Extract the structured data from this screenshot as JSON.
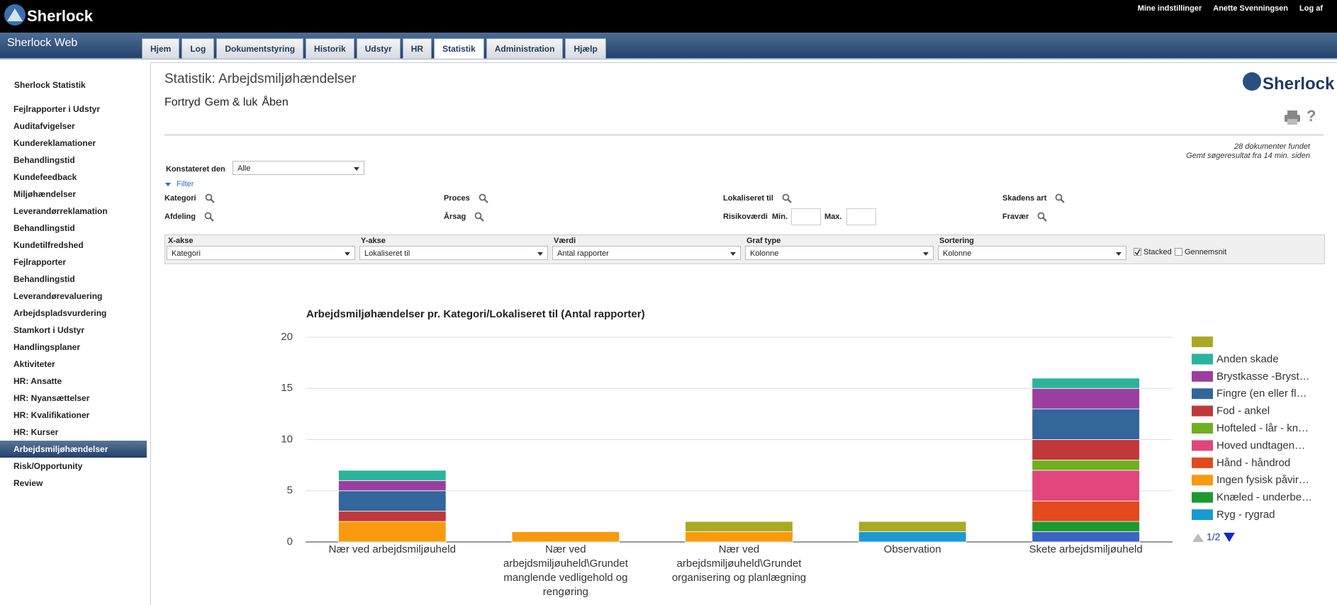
{
  "header": {
    "logo": "Sherlock",
    "app": "Sherlock Web",
    "links": [
      "Mine indstillinger",
      "Anette Svenningsen",
      "Log af"
    ],
    "tabs": [
      "Hjem",
      "Log",
      "Dokumentstyring",
      "Historik",
      "Udstyr",
      "HR",
      "Statistik",
      "Administration",
      "Hjælp"
    ]
  },
  "sidebar": {
    "title": "Sherlock Statistik",
    "items": [
      "Fejlrapporter i Udstyr",
      "Auditafvigelser",
      "Kundereklamationer",
      "Behandlingstid",
      "Kundefeedback",
      "Miljøhændelser",
      "Leverandørreklamation",
      "Behandlingstid",
      "Kundetilfredshed",
      "Fejlrapporter",
      "Behandlingstid",
      "Leverandørevaluering",
      "Arbejdspladsvurdering",
      "Stamkort i Udstyr",
      "Handlingsplaner",
      "Aktiviteter",
      "HR: Ansatte",
      "HR: Nyansættelser",
      "HR: Kvalifikationer",
      "HR: Kurser",
      "Arbejdsmiljøhændelser",
      "Risk/Opportunity",
      "Review"
    ]
  },
  "main": {
    "title": "Statistik: Arbejdsmiljøhændelser",
    "buttons": [
      "Fortryd",
      "Gem & luk",
      "Åben"
    ],
    "logo": "Sherlock",
    "help": "?",
    "result_count": "28 dokumenter fundet",
    "saved": "Gemt søgeresultat fra 14 min. siden",
    "konstateret": {
      "label": "Konstateret den",
      "value": "Alle"
    },
    "filter": "Filter",
    "filters": [
      [
        "Kategori",
        "Proces",
        "Lokaliseret til",
        "Skadens art"
      ],
      [
        "Afdeling",
        "Årsag",
        "Risikoværdi",
        "Fravær"
      ]
    ],
    "risiko_min": "Min.",
    "risiko_max": "Max.",
    "axes": [
      {
        "label": "X-akse",
        "value": "Kategori"
      },
      {
        "label": "Y-akse",
        "value": "Lokaliseret til"
      },
      {
        "label": "Værdi",
        "value": "Antal rapporter"
      },
      {
        "label": "Graf type",
        "value": "Kolonne"
      },
      {
        "label": "Sortering",
        "value": "Kolonne"
      }
    ],
    "stacked": "Stacked",
    "gennemsnit": "Gennemsnit"
  },
  "chart_data": {
    "type": "stacked_bar",
    "title": "Arbejdsmiljøhændelser pr. Kategori/Lokaliseret til (Antal rapporter)",
    "categories": [
      "Nær ved arbejdsmiljøuheld",
      "Nær ved arbejdsmiljøuheld\\Grundet manglende vedligehold og rengøring",
      "Nær ved arbejdsmiljøuheld\\Grundet organisering og planlægning",
      "Observation",
      "Skete arbejdsmiljøuheld"
    ],
    "series": [
      {
        "name": null,
        "color": "#aaaa22",
        "values": [
          0,
          0,
          1,
          1,
          0
        ]
      },
      {
        "name": "Anden skade",
        "color": "#2bb39c",
        "values": [
          1,
          0,
          0,
          0,
          1
        ]
      },
      {
        "name": "Brystkasse -Bryst…",
        "color": "#9b3f9e",
        "values": [
          1,
          0,
          0,
          0,
          2
        ]
      },
      {
        "name": "Fingre (en eller fl…",
        "color": "#33669a",
        "values": [
          2,
          0,
          0,
          0,
          3
        ]
      },
      {
        "name": "Fod - ankel",
        "color": "#c0383a",
        "values": [
          1,
          0,
          0,
          0,
          2
        ]
      },
      {
        "name": "Hofteled - lår - kn…",
        "color": "#6eb01d",
        "values": [
          0,
          0,
          0,
          0,
          1
        ]
      },
      {
        "name": "Hoved undtagen…",
        "color": "#e0457b",
        "values": [
          0,
          0,
          0,
          0,
          3
        ]
      },
      {
        "name": "Hånd - håndrod",
        "color": "#e2491e",
        "values": [
          0,
          0,
          0,
          0,
          2
        ]
      },
      {
        "name": "Ingen fysisk påvir…",
        "color": "#f89a0f",
        "values": [
          2,
          1,
          1,
          0,
          0
        ]
      },
      {
        "name": "Knæled - underbe…",
        "color": "#1c9a2e",
        "values": [
          0,
          0,
          0,
          0,
          1
        ]
      },
      {
        "name": "Ryg - rygrad",
        "color": "#1a9ad0",
        "values": [
          0,
          0,
          0,
          1,
          0
        ]
      },
      {
        "name": null,
        "color": "#3d62c6",
        "values": [
          0,
          0,
          0,
          0,
          1
        ]
      }
    ],
    "ylim": [
      0,
      20
    ],
    "yticks": [
      0,
      5,
      10,
      15,
      20
    ],
    "grid": true,
    "legend_position": "right",
    "legend_pager": "1/2"
  }
}
